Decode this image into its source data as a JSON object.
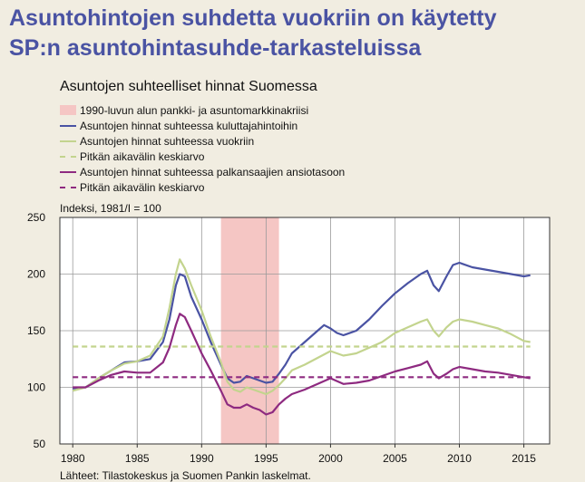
{
  "slide": {
    "title_line1": "Asuntohintojen suhdetta vuokriin on käytetty",
    "title_line2": "SP:n asuntohintasuhde-tarkasteluissa"
  },
  "footnote": "Lähteet: Tilastokeskus ja Suomen Pankin laskelmat.",
  "chart_data": {
    "type": "line",
    "title": "Asuntojen suhteelliset hinnat Suomessa",
    "index_note": "Indeksi, 1981/I = 100",
    "xlim": [
      1979,
      2017
    ],
    "ylim": [
      50,
      250
    ],
    "x_ticks": [
      1980,
      1985,
      1990,
      1995,
      2000,
      2005,
      2010,
      2015
    ],
    "y_ticks": [
      50,
      100,
      150,
      200,
      250
    ],
    "grid": true,
    "crisis_band": {
      "label": "1990-luvun alun pankki- ja asuntomarkkinakriisi",
      "x_start": 1991.5,
      "x_end": 1996,
      "color": "#f5c6c4"
    },
    "series": [
      {
        "name": "Asuntojen hinnat suhteessa kuluttajahintoihin",
        "color": "#4a53a3",
        "style": "solid",
        "points": [
          [
            1980,
            99
          ],
          [
            1981,
            100
          ],
          [
            1982,
            108
          ],
          [
            1983,
            115
          ],
          [
            1984,
            122
          ],
          [
            1985,
            123
          ],
          [
            1986,
            125
          ],
          [
            1987,
            140
          ],
          [
            1987.5,
            160
          ],
          [
            1988,
            190
          ],
          [
            1988.3,
            200
          ],
          [
            1988.7,
            198
          ],
          [
            1989.2,
            180
          ],
          [
            1990,
            160
          ],
          [
            1990.7,
            140
          ],
          [
            1991.5,
            120
          ],
          [
            1992,
            108
          ],
          [
            1992.5,
            104
          ],
          [
            1993,
            105
          ],
          [
            1993.5,
            110
          ],
          [
            1994,
            108
          ],
          [
            1994.5,
            106
          ],
          [
            1995,
            104
          ],
          [
            1995.5,
            105
          ],
          [
            1996,
            112
          ],
          [
            1996.5,
            120
          ],
          [
            1997,
            130
          ],
          [
            1998,
            140
          ],
          [
            1999,
            150
          ],
          [
            1999.5,
            155
          ],
          [
            2000,
            152
          ],
          [
            2000.5,
            148
          ],
          [
            2001,
            146
          ],
          [
            2002,
            150
          ],
          [
            2003,
            160
          ],
          [
            2004,
            172
          ],
          [
            2005,
            183
          ],
          [
            2006,
            192
          ],
          [
            2007,
            200
          ],
          [
            2007.5,
            203
          ],
          [
            2008,
            190
          ],
          [
            2008.4,
            185
          ],
          [
            2009,
            198
          ],
          [
            2009.5,
            208
          ],
          [
            2010,
            210
          ],
          [
            2011,
            206
          ],
          [
            2012,
            204
          ],
          [
            2013,
            202
          ],
          [
            2014,
            200
          ],
          [
            2015,
            198
          ],
          [
            2015.5,
            199
          ]
        ]
      },
      {
        "name": "Asuntojen hinnat suhteessa vuokriin",
        "color": "#c3d48e",
        "style": "solid",
        "points": [
          [
            1980,
            97
          ],
          [
            1981,
            100
          ],
          [
            1982,
            108
          ],
          [
            1983,
            115
          ],
          [
            1984,
            121
          ],
          [
            1985,
            123
          ],
          [
            1986,
            128
          ],
          [
            1987,
            145
          ],
          [
            1987.5,
            170
          ],
          [
            1988,
            200
          ],
          [
            1988.3,
            213
          ],
          [
            1988.7,
            205
          ],
          [
            1989.2,
            190
          ],
          [
            1990,
            168
          ],
          [
            1990.7,
            145
          ],
          [
            1991.5,
            122
          ],
          [
            1992,
            105
          ],
          [
            1992.5,
            98
          ],
          [
            1993,
            96
          ],
          [
            1993.5,
            100
          ],
          [
            1994,
            98
          ],
          [
            1994.5,
            96
          ],
          [
            1995,
            94
          ],
          [
            1995.5,
            97
          ],
          [
            1996,
            102
          ],
          [
            1996.5,
            108
          ],
          [
            1997,
            115
          ],
          [
            1998,
            120
          ],
          [
            1999,
            126
          ],
          [
            2000,
            132
          ],
          [
            2001,
            128
          ],
          [
            2002,
            130
          ],
          [
            2003,
            135
          ],
          [
            2004,
            140
          ],
          [
            2005,
            148
          ],
          [
            2006,
            153
          ],
          [
            2007,
            158
          ],
          [
            2007.5,
            160
          ],
          [
            2008,
            150
          ],
          [
            2008.4,
            145
          ],
          [
            2009,
            153
          ],
          [
            2009.5,
            158
          ],
          [
            2010,
            160
          ],
          [
            2011,
            158
          ],
          [
            2012,
            155
          ],
          [
            2013,
            152
          ],
          [
            2014,
            147
          ],
          [
            2015,
            141
          ],
          [
            2015.5,
            140
          ]
        ]
      },
      {
        "name": "Pitkän aikavälin keskiarvo",
        "color": "#c3d48e",
        "style": "dashed",
        "points": [
          [
            1980,
            136
          ],
          [
            2015.5,
            136
          ]
        ]
      },
      {
        "name": "Asuntojen hinnat suhteessa palkansaajien ansiotasoon",
        "color": "#8e2a80",
        "style": "solid",
        "points": [
          [
            1980,
            100
          ],
          [
            1981,
            100
          ],
          [
            1982,
            106
          ],
          [
            1983,
            111
          ],
          [
            1984,
            114
          ],
          [
            1985,
            113
          ],
          [
            1986,
            113
          ],
          [
            1987,
            122
          ],
          [
            1987.5,
            135
          ],
          [
            1988,
            155
          ],
          [
            1988.3,
            165
          ],
          [
            1988.7,
            162
          ],
          [
            1989.2,
            150
          ],
          [
            1990,
            130
          ],
          [
            1990.7,
            115
          ],
          [
            1991.5,
            97
          ],
          [
            1992,
            85
          ],
          [
            1992.5,
            82
          ],
          [
            1993,
            82
          ],
          [
            1993.5,
            85
          ],
          [
            1994,
            82
          ],
          [
            1994.5,
            80
          ],
          [
            1995,
            76
          ],
          [
            1995.5,
            78
          ],
          [
            1996,
            85
          ],
          [
            1996.5,
            90
          ],
          [
            1997,
            94
          ],
          [
            1998,
            98
          ],
          [
            1999,
            103
          ],
          [
            2000,
            108
          ],
          [
            2001,
            103
          ],
          [
            2002,
            104
          ],
          [
            2003,
            106
          ],
          [
            2004,
            110
          ],
          [
            2005,
            114
          ],
          [
            2006,
            117
          ],
          [
            2007,
            120
          ],
          [
            2007.5,
            123
          ],
          [
            2008,
            112
          ],
          [
            2008.4,
            108
          ],
          [
            2009,
            112
          ],
          [
            2009.5,
            116
          ],
          [
            2010,
            118
          ],
          [
            2011,
            116
          ],
          [
            2012,
            114
          ],
          [
            2013,
            113
          ],
          [
            2014,
            111
          ],
          [
            2015,
            109
          ],
          [
            2015.5,
            108
          ]
        ]
      },
      {
        "name": "Pitkän aikavälin keskiarvo",
        "color": "#8e2a80",
        "style": "dashed",
        "points": [
          [
            1980,
            109
          ],
          [
            2015.5,
            109
          ]
        ]
      }
    ]
  }
}
